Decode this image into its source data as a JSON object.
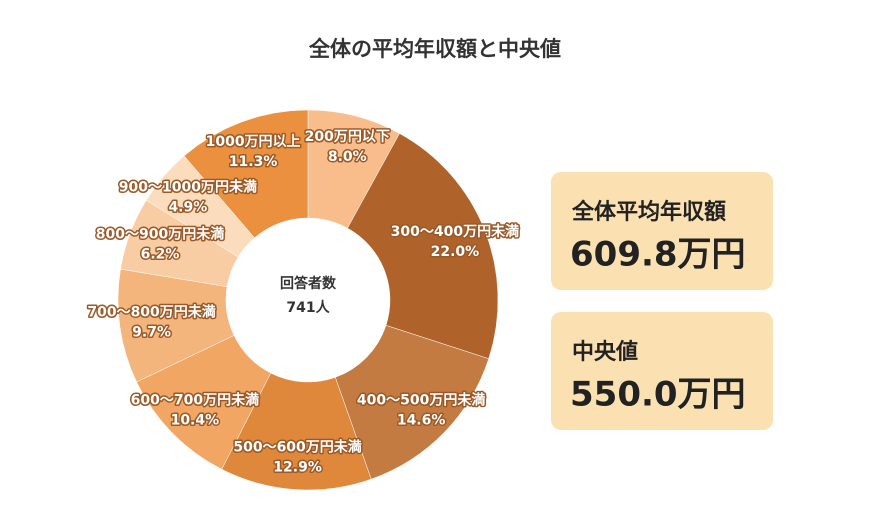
{
  "chart_data": {
    "type": "donut",
    "title": "全体の平均年収額と中央値",
    "categories": [
      "200万円以下",
      "300～400万円未満",
      "400～500万円未満",
      "500～600万円未満",
      "600～700万円未満",
      "700～800万円未満",
      "800～900万円未満",
      "900～1000万円未満",
      "1000万円以上"
    ],
    "values": [
      8.0,
      22.0,
      14.6,
      12.9,
      10.4,
      9.7,
      6.2,
      4.9,
      11.3
    ],
    "value_labels": [
      "8.0%",
      "22.0%",
      "14.6%",
      "12.9%",
      "10.4%",
      "9.7%",
      "6.2%",
      "4.9%",
      "11.3%"
    ],
    "colors": [
      "#f9bd8c",
      "#b0622b",
      "#c47b41",
      "#df883b",
      "#f1a664",
      "#f4b57c",
      "#f8cda3",
      "#fbdcbd",
      "#ea903f"
    ],
    "center_label": "回答者数",
    "center_value": "741人",
    "summary": [
      {
        "label": "全体平均年収額",
        "value": "609.8万円"
      },
      {
        "label": "中央値",
        "value": "550.0万円"
      }
    ]
  }
}
